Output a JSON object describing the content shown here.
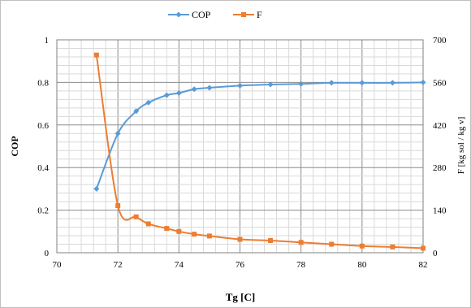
{
  "chart_data": {
    "type": "line",
    "xlabel": "Tg [C]",
    "ylabel_left": "COP",
    "ylabel_right": "F [kg sol / kg v]",
    "xlim": [
      70,
      82
    ],
    "x_ticks": [
      70,
      72,
      74,
      76,
      78,
      80,
      82
    ],
    "x_minor_step": 0.4,
    "ylim_left": [
      0,
      1
    ],
    "y_ticks_left": [
      0,
      0.2,
      0.4,
      0.6,
      0.8,
      1
    ],
    "ylim_right": [
      0,
      700
    ],
    "y_ticks_right": [
      0,
      140,
      280,
      420,
      560,
      700
    ],
    "y_minor_step_left": 0.04,
    "grid": true,
    "legend_position": "top",
    "series": [
      {
        "name": "COP",
        "axis": "left",
        "color": "#5b9bd5",
        "marker": "diamond",
        "x": [
          71.3,
          72,
          72.6,
          73,
          73.6,
          74,
          74.5,
          75,
          76,
          77,
          78,
          79,
          80,
          81,
          82
        ],
        "y": [
          0.3,
          0.56,
          0.665,
          0.705,
          0.74,
          0.75,
          0.768,
          0.775,
          0.785,
          0.79,
          0.793,
          0.798,
          0.798,
          0.798,
          0.8
        ]
      },
      {
        "name": "F",
        "axis": "right",
        "color": "#ed7d31",
        "marker": "square",
        "x": [
          71.3,
          72,
          72.6,
          73,
          73.6,
          74,
          74.5,
          75,
          76,
          77,
          78,
          79,
          80,
          81,
          82
        ],
        "y": [
          650,
          155,
          118,
          95,
          80,
          70,
          61,
          55,
          44,
          40,
          34,
          28,
          22,
          19,
          15
        ]
      }
    ]
  }
}
